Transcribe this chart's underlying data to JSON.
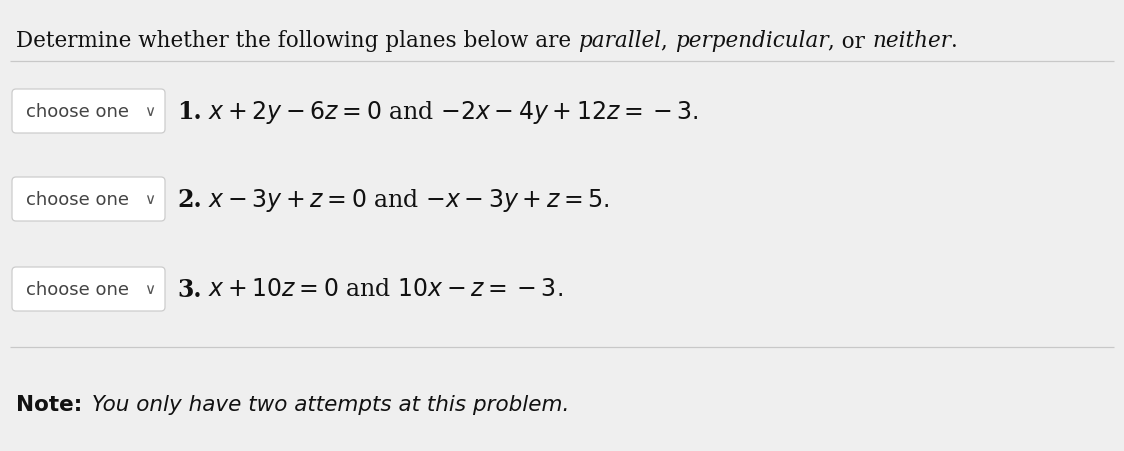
{
  "bg_color": "#efefef",
  "white": "#ffffff",
  "separator_color": "#c8c8c8",
  "dropdown_border": "#cccccc",
  "text_color": "#111111",
  "dropdown_text": "choose one",
  "note_bold": "Note:",
  "note_italic": " You only have two attempts at this problem.",
  "title_parts": [
    {
      "text": "Determine whether the following planes below are ",
      "style": "normal"
    },
    {
      "text": "parallel",
      "style": "italic"
    },
    {
      "text": ", ",
      "style": "normal"
    },
    {
      "text": "perpendicular",
      "style": "italic"
    },
    {
      "text": ", or ",
      "style": "normal"
    },
    {
      "text": "neither",
      "style": "italic"
    },
    {
      "text": ".",
      "style": "normal"
    }
  ],
  "rows": [
    {
      "num": "1.",
      "eq": "$x + 2y - 6z = 0$ and $-2x - 4y + 12z = -3.$"
    },
    {
      "num": "2.",
      "eq": "$x - 3y + z = 0$ and $-x - 3y + z = 5.$"
    },
    {
      "num": "3.",
      "eq": "$x + 10z = 0$ and $10x - z = -3.$"
    }
  ],
  "title_fontsize": 15.5,
  "eq_fontsize": 17,
  "note_fontsize": 15.5,
  "dropdown_fontsize": 13,
  "fig_width": 11.24,
  "fig_height": 4.52,
  "dpi": 100
}
